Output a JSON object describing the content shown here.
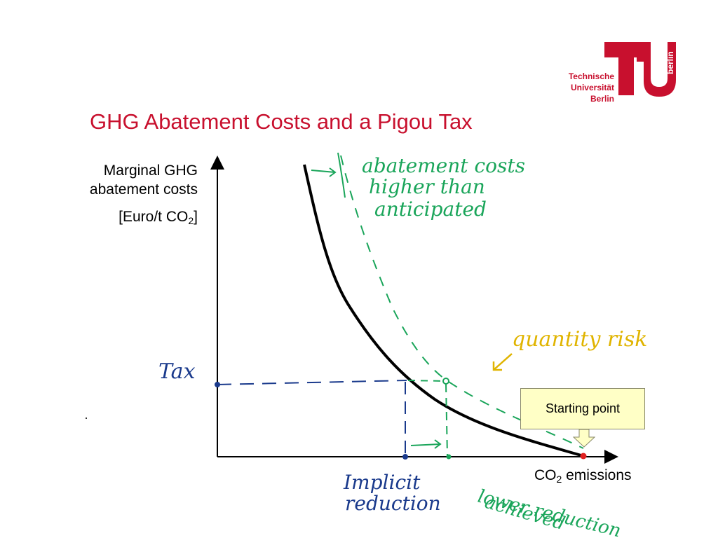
{
  "title": "GHG Abatement Costs and a Pigou Tax",
  "logo": {
    "line1": "Technische",
    "line2": "Universität",
    "line3": "Berlin",
    "side_text": "berlin",
    "color": "#c8102e"
  },
  "y_axis": {
    "line1": "Marginal GHG",
    "line2": "abatement costs",
    "unit_prefix": "[Euro/t CO",
    "unit_sub": "2",
    "unit_suffix": "]"
  },
  "x_axis": {
    "prefix": "CO",
    "sub": "2",
    "suffix": " emissions"
  },
  "callout": {
    "label": "Starting point",
    "fill": "#ffffc6"
  },
  "handwritten": {
    "tax": "Tax",
    "abatement_line1": "abatement costs",
    "abatement_line2": "higher than",
    "abatement_line3": "anticipated",
    "quantity_risk": "quantity risk",
    "implicit_line1": "Implicit",
    "implicit_line2": "reduction",
    "lower_line1": "lower reduction",
    "lower_line2": "achieved"
  },
  "colors": {
    "title": "#c8102e",
    "curve": "#000000",
    "blue_ink": "#1a3a8c",
    "green_ink": "#1aa55a",
    "yellow_ink": "#e0b400",
    "start_dot": "#e02020"
  }
}
